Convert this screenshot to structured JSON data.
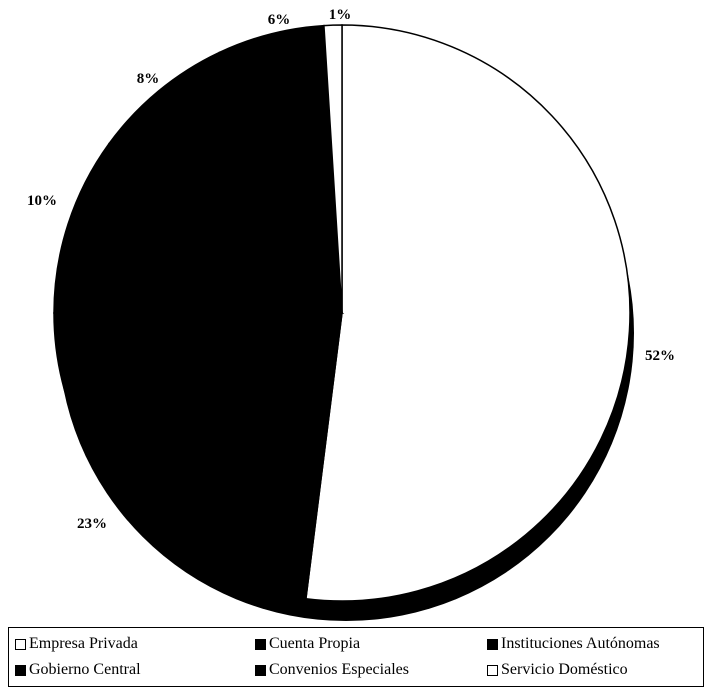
{
  "chart_data": {
    "type": "pie",
    "title": "",
    "slices": [
      {
        "label": "Empresa Privada",
        "value": 52,
        "display": "52%",
        "color": "#ffffff"
      },
      {
        "label": "Gobierno Central",
        "value": 23,
        "display": "23%",
        "color": "#000000"
      },
      {
        "label": "Cuenta Propia",
        "value": 10,
        "display": "10%",
        "color": "#000000"
      },
      {
        "label": "Convenios Especiales",
        "value": 8,
        "display": "8%",
        "color": "#000000"
      },
      {
        "label": "Instituciones Autónomas",
        "value": 6,
        "display": "6%",
        "color": "#000000"
      },
      {
        "label": "Servicio Doméstico",
        "value": 1,
        "display": "1%",
        "color": "#ffffff"
      }
    ],
    "legend_position": "bottom",
    "three_d": true
  },
  "legend": {
    "items": [
      {
        "label": "Empresa Privada",
        "color": "#ffffff"
      },
      {
        "label": "Cuenta Propia",
        "color": "#000000"
      },
      {
        "label": "Instituciones Autónomas",
        "color": "#000000"
      },
      {
        "label": "Gobierno Central",
        "color": "#000000"
      },
      {
        "label": "Convenios Especiales",
        "color": "#000000"
      },
      {
        "label": "Servicio Doméstico",
        "color": "#ffffff"
      }
    ]
  }
}
